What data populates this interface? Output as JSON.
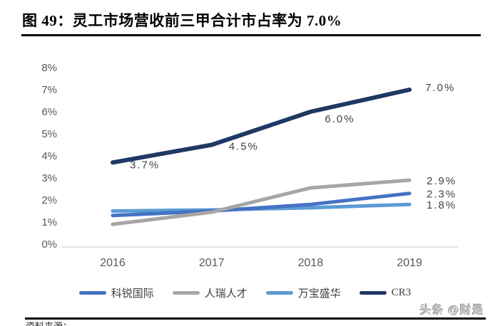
{
  "figure": {
    "title": "图 49：灵工市场营收前三甲合计市占率为 7.0%"
  },
  "watermark": {
    "text": "头条 @财是"
  },
  "footnote": {
    "text_partial": "资料来源："
  },
  "colors": {
    "title": "#000000",
    "axis_text": "#595959",
    "data_label": "#444444",
    "baseline": "#d9d9d9",
    "kerui_blue": "#4472C4",
    "renrui_gray": "#A6A6A6",
    "wanbao_lightblue": "#5B9BD5",
    "cr3_navy": "#1F3864"
  },
  "chart_data": {
    "type": "line",
    "title": "灵工市场营收前三甲合计市占率",
    "x": [
      "2016",
      "2017",
      "2018",
      "2019"
    ],
    "series": [
      {
        "key": "kerui",
        "name": "科锐国际",
        "color": "#4472C4",
        "values": [
          1.3,
          1.5,
          1.8,
          2.3
        ]
      },
      {
        "key": "renrui",
        "name": "人瑞人才",
        "color": "#A6A6A6",
        "values": [
          0.9,
          1.45,
          2.55,
          2.9
        ]
      },
      {
        "key": "wanbao",
        "name": "万宝盛华",
        "color": "#5B9BD5",
        "values": [
          1.5,
          1.55,
          1.65,
          1.8
        ]
      },
      {
        "key": "cr3",
        "name": "CR3",
        "color": "#1F3864",
        "values": [
          3.7,
          4.5,
          6.0,
          7.0
        ]
      }
    ],
    "y_ticks": [
      "0%",
      "1%",
      "2%",
      "3%",
      "4%",
      "5%",
      "6%",
      "7%",
      "8%"
    ],
    "ylim": [
      0,
      8
    ],
    "grid": false,
    "legend_position": "bottom",
    "data_labels": {
      "cr3_inline": [
        "3.7%",
        "4.5%",
        "6.0%",
        "7.0%"
      ],
      "end_labels": [
        {
          "series": "renrui",
          "value": 2.9,
          "text": "2.9%"
        },
        {
          "series": "kerui",
          "value": 2.3,
          "text": "2.3%"
        },
        {
          "series": "wanbao",
          "value": 1.8,
          "text": "1.8%"
        }
      ]
    }
  }
}
